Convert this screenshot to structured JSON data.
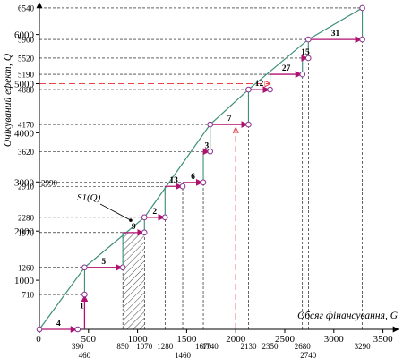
{
  "chart_data": {
    "type": "line",
    "title": "",
    "xlabel": "Обсяг фінансування, G",
    "ylabel": "Очікуваний ефект, Q",
    "xlim": [
      0,
      3500
    ],
    "ylim": [
      0,
      6540
    ],
    "x_axis_ticks": [
      0,
      500,
      1000,
      1500,
      2000,
      2500,
      3000,
      3500
    ],
    "y_axis_ticks": [
      1000,
      2000,
      3000,
      4000,
      5000,
      6000
    ],
    "x_value_labels": [
      {
        "value": 390,
        "text": "390",
        "row": 0
      },
      {
        "value": 460,
        "text": "460",
        "row": 1
      },
      {
        "value": 850,
        "text": "850",
        "row": 0
      },
      {
        "value": 1070,
        "text": "1070",
        "row": 0
      },
      {
        "value": 1280,
        "text": "1280",
        "row": 0
      },
      {
        "value": 1460,
        "text": "1460",
        "row": 1
      },
      {
        "value": 1670,
        "text": "1670",
        "row": 0
      },
      {
        "value": 1740,
        "text": "1740",
        "row": 0
      },
      {
        "value": 2130,
        "text": "2130",
        "row": 0
      },
      {
        "value": 2350,
        "text": "2350",
        "row": 0
      },
      {
        "value": 2680,
        "text": "2680",
        "row": 0
      },
      {
        "value": 2740,
        "text": "2740",
        "row": 1
      },
      {
        "value": 3290,
        "text": "3290",
        "row": 0
      }
    ],
    "y_value_labels": [
      {
        "value": 710,
        "text": "710"
      },
      {
        "value": 1260,
        "text": "1260"
      },
      {
        "value": 1970,
        "text": "1970"
      },
      {
        "value": 2280,
        "text": "2280"
      },
      {
        "value": 2910,
        "text": "2910"
      },
      {
        "value": 2990,
        "text": "2990"
      },
      {
        "value": 3620,
        "text": "3620"
      },
      {
        "value": 4170,
        "text": "4170"
      },
      {
        "value": 4880,
        "text": "4880"
      },
      {
        "value": 5190,
        "text": "5190"
      },
      {
        "value": 5520,
        "text": "5520"
      },
      {
        "value": 5900,
        "text": "5900"
      },
      {
        "value": 6540,
        "text": "6540"
      }
    ],
    "steps": [
      {
        "label": "4",
        "x0": 0,
        "x1": 390,
        "y0": 0,
        "y1": 0
      },
      {
        "label": "1",
        "x0": 390,
        "x1": 460,
        "y0": 0,
        "y1": 710
      },
      {
        "label": "5",
        "x0": 460,
        "x1": 850,
        "y0": 1260,
        "y1": 1260
      },
      {
        "label": "9",
        "x0": 850,
        "x1": 1070,
        "y0": 1970,
        "y1": 1970
      },
      {
        "label": "2",
        "x0": 1070,
        "x1": 1280,
        "y0": 2280,
        "y1": 2280
      },
      {
        "label": "13",
        "x0": 1280,
        "x1": 1460,
        "y0": 2910,
        "y1": 2910
      },
      {
        "label": "6",
        "x0": 1460,
        "x1": 1670,
        "y0": 2990,
        "y1": 2990
      },
      {
        "label": "3",
        "x0": 1670,
        "x1": 1740,
        "y0": 3620,
        "y1": 3620
      },
      {
        "label": "7",
        "x0": 1740,
        "x1": 2130,
        "y0": 4170,
        "y1": 4170
      },
      {
        "label": "12",
        "x0": 2130,
        "x1": 2350,
        "y0": 4880,
        "y1": 4880
      },
      {
        "label": "27",
        "x0": 2350,
        "x1": 2680,
        "y0": 5190,
        "y1": 5190
      },
      {
        "label": "15",
        "x0": 2680,
        "x1": 2740,
        "y0": 5520,
        "y1": 5520
      },
      {
        "label": "31",
        "x0": 2740,
        "x1": 3290,
        "y0": 5900,
        "y1": 5900
      }
    ],
    "envelope_curve": {
      "label": "S1(Q)",
      "points": [
        [
          0,
          0
        ],
        [
          460,
          1260
        ],
        [
          1070,
          2280
        ],
        [
          1740,
          4170
        ],
        [
          2130,
          4880
        ],
        [
          2740,
          5900
        ],
        [
          3290,
          6540
        ]
      ]
    },
    "budget_line": {
      "x": 2000,
      "y": 5000
    },
    "shaded_region": {
      "x0": 850,
      "x1": 1070,
      "y0": 0,
      "y1": 1970
    },
    "colors": {
      "envelope": "#3d8f7a",
      "step_arrow": "#b0106e",
      "budget": "#e8414a",
      "marker": "#8a2f92",
      "axis": "#000000"
    }
  }
}
